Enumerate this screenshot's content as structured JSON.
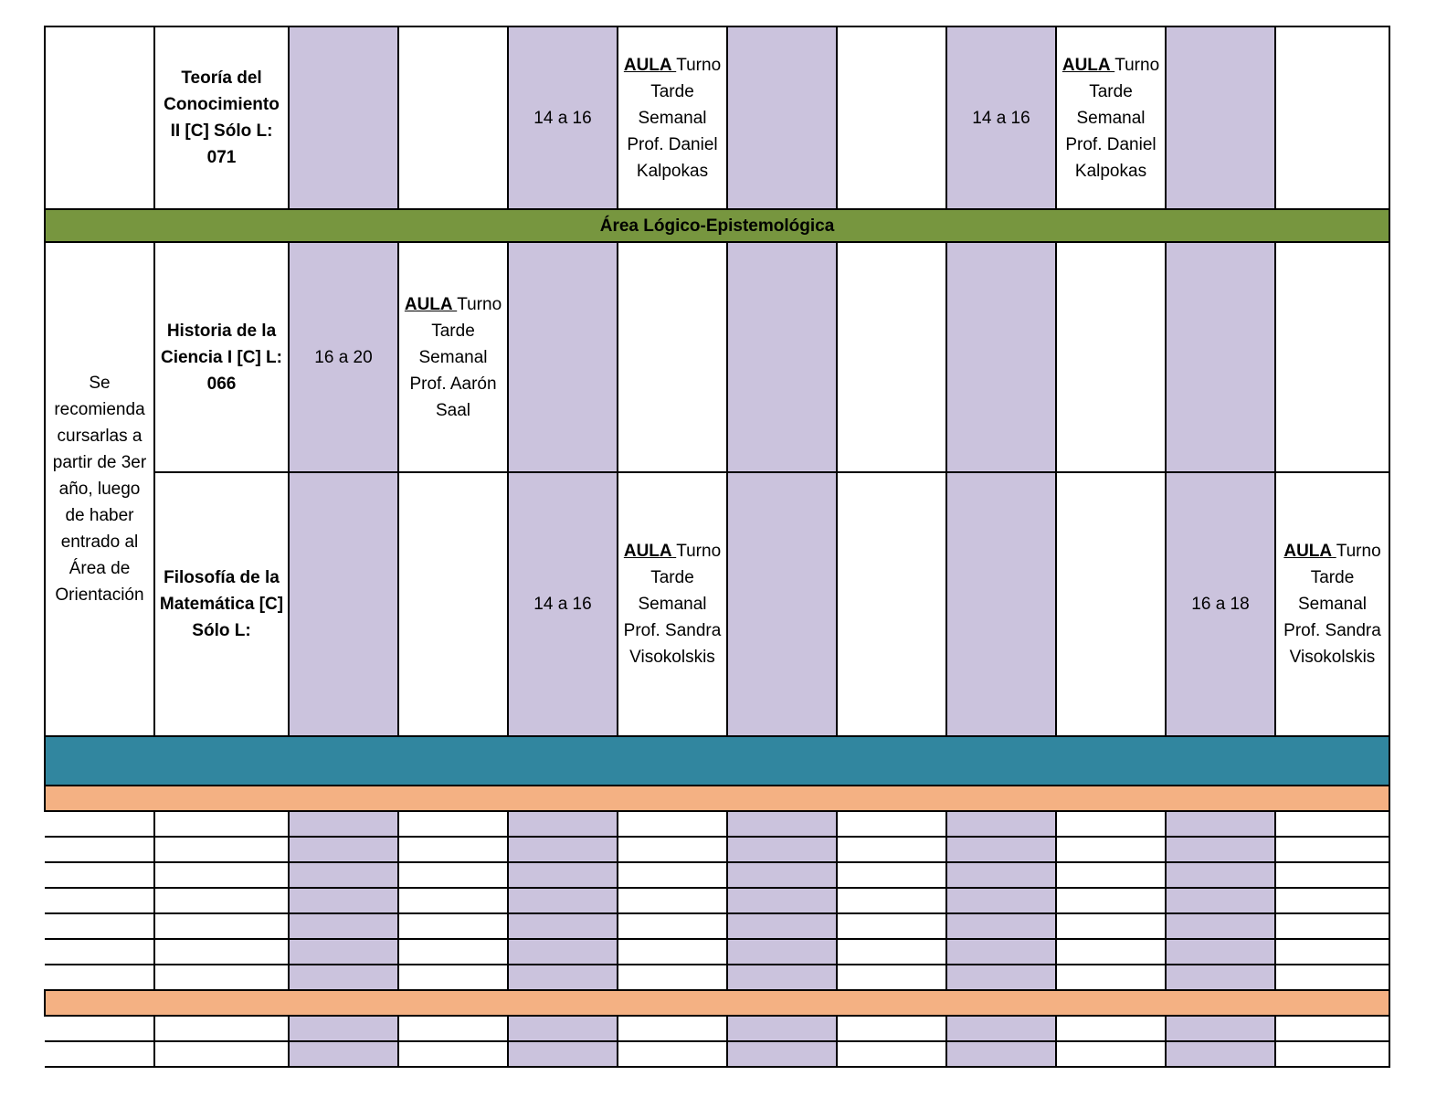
{
  "top_row": {
    "subject": "Teoría del Conocimiento II [C] Sólo  L: 071",
    "slot1": {
      "time": "14 a 16",
      "aula": "AULA ",
      "details": "Turno Tarde Semanal Prof. Daniel Kalpokas"
    },
    "slot2": {
      "time": "14 a 16",
      "aula": "AULA ",
      "details": "Turno Tarde Semanal Prof. Daniel Kalpokas"
    }
  },
  "area_title": "Área Lógico-Epistemológica",
  "recommendation": "Se recomienda cursarlas a partir de 3er año, luego de haber entrado al Área de Orientación",
  "historia": {
    "subject": "Historia de la Ciencia I [C] L: 066",
    "time": "16 a 20",
    "aula": "AULA ",
    "details": "Turno Tarde Semanal Prof. Aarón Saal"
  },
  "filosofia": {
    "subject": "Filosofía de la Matemática [C] Sólo L:",
    "slot1": {
      "time": "14 a 16",
      "aula": "AULA ",
      "details": "Turno Tarde Semanal Prof. Sandra Visokolskis"
    },
    "slot2": {
      "time": "16 a 18",
      "aula": "AULA ",
      "details": "Turno Tarde Semanal Prof. Sandra Visokolskis"
    }
  },
  "colors": {
    "lavender": "#cbc3dd",
    "area_green": "#77963f",
    "teal": "#31869f",
    "peach": "#f4b183"
  }
}
